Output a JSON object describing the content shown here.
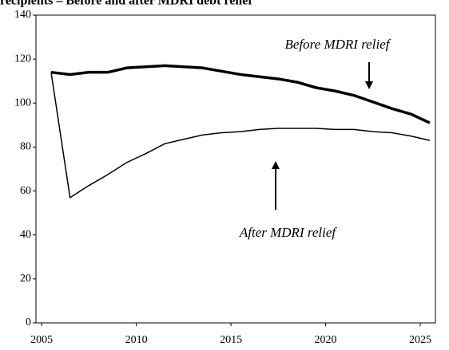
{
  "chart_data": {
    "type": "line",
    "title": "recipients – Before and after MDRI debt relief",
    "x": [
      2005.5,
      2006.5,
      2007.5,
      2008.5,
      2009.5,
      2010.5,
      2011.5,
      2012.5,
      2013.5,
      2014.5,
      2015.5,
      2016.5,
      2017.5,
      2018.5,
      2019.5,
      2020.5,
      2021.5,
      2022.5,
      2023.5,
      2024.5,
      2025.5
    ],
    "series": [
      {
        "name": "Before MDRI relief",
        "color": "#000000",
        "values": [
          114,
          113,
          114,
          114,
          116,
          116.5,
          117,
          116.5,
          116,
          114.5,
          113,
          112,
          111,
          109.5,
          107,
          105.5,
          103.5,
          100.5,
          97.5,
          95,
          91
        ]
      },
      {
        "name": "After MDRI relief",
        "color": "#000000",
        "values": [
          114,
          57,
          62.5,
          67.5,
          73,
          77,
          81.5,
          83.5,
          85.5,
          86.5,
          87,
          88,
          88.5,
          88.5,
          88.5,
          88,
          88,
          87,
          86.5,
          85,
          83
        ]
      }
    ],
    "xlim": [
      2004.7,
      2025.8
    ],
    "xticks": [
      2005,
      2010,
      2015,
      2020,
      2025
    ],
    "ylim": [
      0,
      140
    ],
    "yticks": [
      0,
      20,
      40,
      60,
      80,
      100,
      120,
      140
    ]
  }
}
